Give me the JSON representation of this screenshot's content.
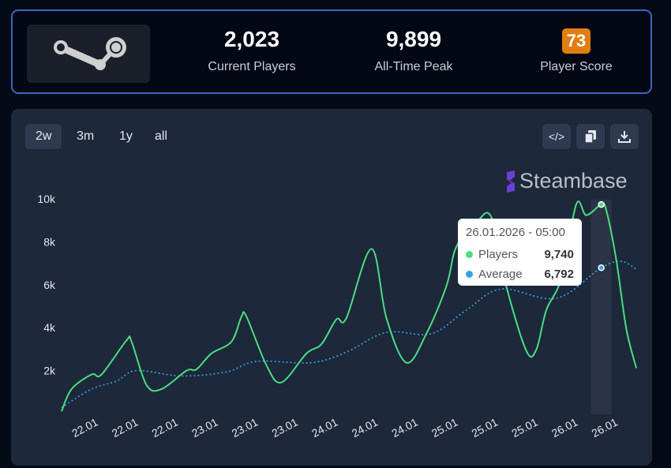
{
  "stats": {
    "current_players": "2,023",
    "current_players_label": "Current Players",
    "peak": "9,899",
    "peak_label": "All-Time Peak",
    "score": "73",
    "score_label": "Player Score",
    "score_color": "#e07e12"
  },
  "toolbar": {
    "ranges": [
      "2w",
      "3m",
      "1y",
      "all"
    ],
    "selected": "2w",
    "icons": [
      "code-icon",
      "copy-icon",
      "download-icon"
    ]
  },
  "brand": "Steambase",
  "tooltip": {
    "date": "26.01.2026 - 05:00",
    "players_label": "Players",
    "players_value": "9,740",
    "average_label": "Average",
    "average_value": "6,792"
  },
  "chart_data": {
    "type": "line",
    "ylim": [
      0,
      10000
    ],
    "yticks": [
      2000,
      4000,
      6000,
      8000,
      10000
    ],
    "ytick_labels": [
      "2k",
      "4k",
      "6k",
      "8k",
      "10k"
    ],
    "xlim": [
      "21.01 17:00",
      "26.01 12:00"
    ],
    "xticks": [
      "22.01 00:00",
      "22.01 08:00",
      "22.01 16:00",
      "23.01 00:00",
      "23.01 08:00",
      "23.01 16:00",
      "24.01 00:00",
      "24.01 08:00",
      "24.01 16:00",
      "25.01 00:00",
      "25.01 08:00",
      "25.01 16:00",
      "26.01 00:00",
      "26.01 08:00"
    ],
    "xtick_labels": [
      "22.01",
      "22.01",
      "22.01",
      "23.01",
      "23.01",
      "23.01",
      "24.01",
      "24.01",
      "24.01",
      "25.01",
      "25.01",
      "25.01",
      "26.01",
      "26.01"
    ],
    "highlight": "26.01 05:00",
    "series": [
      {
        "name": "Players",
        "color": "#4ade80",
        "style": "solid",
        "points": [
          [
            "21.01 17:00",
            100
          ],
          [
            "21.01 19:00",
            1140
          ],
          [
            "21.01 23:00",
            1820
          ],
          [
            "22.01 01:00",
            1820
          ],
          [
            "22.01 06:00",
            3410
          ],
          [
            "22.01 07:00",
            3350
          ],
          [
            "22.01 10:00",
            1325
          ],
          [
            "22.01 13:00",
            1140
          ],
          [
            "22.01 18:00",
            2000
          ],
          [
            "22.01 20:00",
            2060
          ],
          [
            "22.01 23:00",
            2800
          ],
          [
            "23.01 03:00",
            3350
          ],
          [
            "23.01 05:00",
            4515
          ],
          [
            "23.01 06:00",
            4515
          ],
          [
            "23.01 10:00",
            2245
          ],
          [
            "23.01 13:00",
            1450
          ],
          [
            "23.01 18:00",
            2800
          ],
          [
            "23.01 21:00",
            3230
          ],
          [
            "24.01 00:00",
            4390
          ],
          [
            "24.01 02:00",
            4450
          ],
          [
            "24.01 07:00",
            7670
          ],
          [
            "24.01 10:00",
            4450
          ],
          [
            "24.01 14:00",
            2370
          ],
          [
            "24.01 18:00",
            3720
          ],
          [
            "24.01 22:00",
            5930
          ],
          [
            "25.01 00:00",
            7770
          ],
          [
            "25.01 04:00",
            8900
          ],
          [
            "25.01 07:00",
            9150
          ],
          [
            "25.01 10:00",
            5930
          ],
          [
            "25.01 14:00",
            2920
          ],
          [
            "25.01 16:00",
            2980
          ],
          [
            "25.01 18:00",
            4820
          ],
          [
            "25.01 21:00",
            6300
          ],
          [
            "26.01 00:00",
            9750
          ],
          [
            "26.01 02:00",
            9240
          ],
          [
            "26.01 05:00",
            9740
          ],
          [
            "26.01 06:00",
            9470
          ],
          [
            "26.01 08:00",
            7150
          ],
          [
            "26.01 10:00",
            3960
          ],
          [
            "26.01 12:00",
            2120
          ]
        ]
      },
      {
        "name": "Average",
        "color": "#38a3e8",
        "style": "dotted",
        "points": [
          [
            "21.01 17:00",
            280
          ],
          [
            "21.01 23:00",
            1140
          ],
          [
            "22.01 04:00",
            1510
          ],
          [
            "22.01 08:00",
            2000
          ],
          [
            "22.01 17:00",
            1750
          ],
          [
            "23.01 02:00",
            1940
          ],
          [
            "23.01 08:00",
            2430
          ],
          [
            "23.01 19:00",
            2370
          ],
          [
            "24.01 02:00",
            2860
          ],
          [
            "24.01 10:00",
            3780
          ],
          [
            "24.01 19:00",
            3720
          ],
          [
            "25.01 02:00",
            4820
          ],
          [
            "25.01 09:00",
            5800
          ],
          [
            "25.01 20:00",
            5370
          ],
          [
            "26.01 05:00",
            6792
          ],
          [
            "26.01 09:00",
            7090
          ],
          [
            "26.01 12:00",
            6720
          ]
        ]
      }
    ]
  }
}
